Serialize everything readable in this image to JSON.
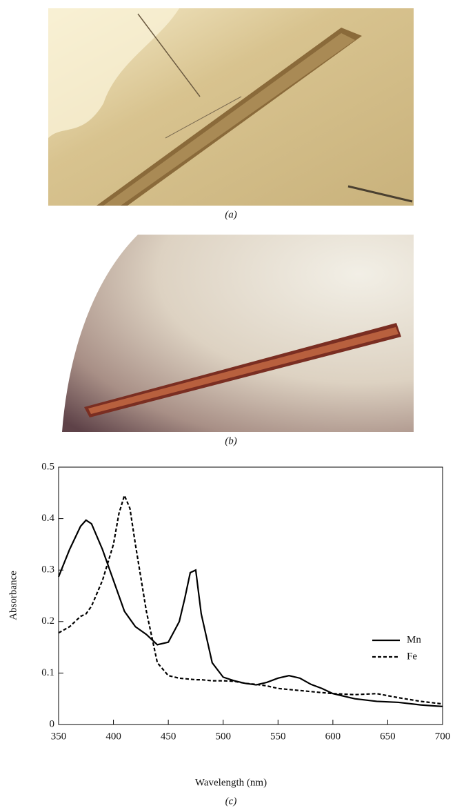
{
  "panels": [
    {
      "label": "(a)"
    },
    {
      "label": "(b)"
    }
  ],
  "chart_data": {
    "type": "line",
    "caption": "(c)",
    "x_label": "Wavelength (nm)",
    "y_label": "Absorbance",
    "x": [
      350,
      360,
      370,
      375,
      380,
      390,
      400,
      405,
      410,
      415,
      420,
      430,
      440,
      450,
      460,
      465,
      470,
      475,
      480,
      490,
      500,
      510,
      520,
      530,
      540,
      550,
      560,
      570,
      580,
      590,
      600,
      620,
      640,
      660,
      680,
      700
    ],
    "series": [
      {
        "name": "Mn",
        "color": "#000000",
        "line_style": "solid",
        "values": [
          0.287,
          0.34,
          0.385,
          0.397,
          0.39,
          0.34,
          0.28,
          0.25,
          0.22,
          0.205,
          0.19,
          0.175,
          0.155,
          0.16,
          0.2,
          0.245,
          0.295,
          0.3,
          0.215,
          0.12,
          0.092,
          0.085,
          0.08,
          0.077,
          0.082,
          0.09,
          0.095,
          0.09,
          0.078,
          0.07,
          0.06,
          0.05,
          0.045,
          0.043,
          0.038,
          0.035
        ]
      },
      {
        "name": "Fe",
        "color": "#000000",
        "line_style": "dashed",
        "values": [
          0.178,
          0.19,
          0.21,
          0.215,
          0.23,
          0.28,
          0.35,
          0.41,
          0.445,
          0.42,
          0.35,
          0.22,
          0.12,
          0.095,
          0.09,
          0.089,
          0.088,
          0.087,
          0.087,
          0.085,
          0.085,
          0.084,
          0.08,
          0.078,
          0.075,
          0.07,
          0.068,
          0.066,
          0.064,
          0.062,
          0.06,
          0.058,
          0.06,
          0.052,
          0.045,
          0.04
        ]
      }
    ],
    "xlim": [
      350,
      700
    ],
    "xticks": [
      350,
      400,
      450,
      500,
      550,
      600,
      650,
      700
    ],
    "ylim": [
      0,
      0.5
    ],
    "yticks": [
      0,
      0.1,
      0.2,
      0.3,
      0.4,
      0.5
    ],
    "grid": false,
    "legend_position": "right"
  }
}
